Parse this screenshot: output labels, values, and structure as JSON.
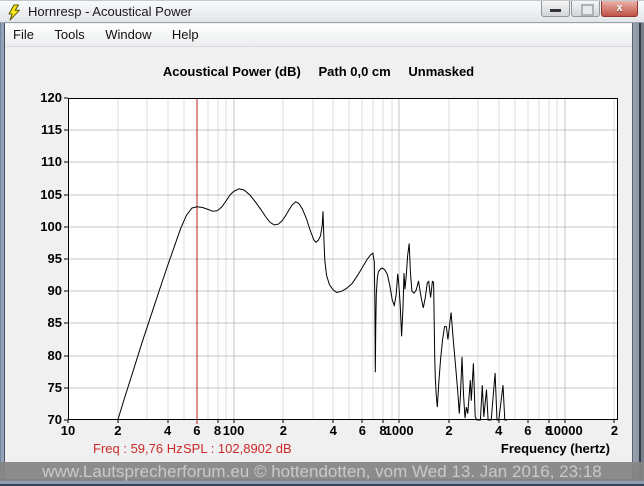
{
  "window": {
    "title": "Hornresp - Acoustical Power",
    "controls": {
      "close_glyph": "x"
    }
  },
  "menu": {
    "items": [
      {
        "label": "File"
      },
      {
        "label": "Tools"
      },
      {
        "label": "Window"
      },
      {
        "label": "Help"
      }
    ]
  },
  "chart": {
    "title_power": "Acoustical Power (dB)",
    "title_path": "Path 0,0 cm",
    "title_mask": "Unmasked",
    "xlabel": "Frequency (hertz)"
  },
  "status": {
    "freq_label": "Freq : 59,76 Hz",
    "spl_label": "SPL : 102,8902 dB"
  },
  "watermark": {
    "text": "www.Lautsprecherforum.eu © hottendotten, vom Wed 13. Jan 2016, 23:18"
  },
  "colors": {
    "cursor_red": "#b22222",
    "status_red": "#cc2a2a",
    "close_button_red": "#c05145",
    "watermark_bg": "#858585",
    "watermark_text": "#c6cacd",
    "grid_minor": "#dedede",
    "grid_major": "#c4c4c4"
  },
  "chart_data": {
    "type": "line",
    "title": "Acoustical Power (dB)  Path 0,0 cm  Unmasked",
    "xlabel": "Frequency (hertz)",
    "ylabel": "dB",
    "x_scale": "log",
    "xlim": [
      10,
      21000
    ],
    "ylim": [
      70,
      120
    ],
    "grid": true,
    "y_ticks": [
      120,
      115,
      110,
      105,
      100,
      95,
      90,
      85,
      80,
      75,
      70
    ],
    "x_ticks": [
      {
        "hz": 10,
        "label": "10"
      },
      {
        "hz": 20,
        "label": "2"
      },
      {
        "hz": 40,
        "label": "4"
      },
      {
        "hz": 60,
        "label": "6"
      },
      {
        "hz": 80,
        "label": "8"
      },
      {
        "hz": 100,
        "label": "100"
      },
      {
        "hz": 200,
        "label": "2"
      },
      {
        "hz": 400,
        "label": "4"
      },
      {
        "hz": 600,
        "label": "6"
      },
      {
        "hz": 800,
        "label": "8"
      },
      {
        "hz": 1000,
        "label": "1000"
      },
      {
        "hz": 2000,
        "label": "2"
      },
      {
        "hz": 4000,
        "label": "4"
      },
      {
        "hz": 6000,
        "label": "6"
      },
      {
        "hz": 8000,
        "label": "8"
      },
      {
        "hz": 10000,
        "label": "10000"
      },
      {
        "hz": 20000,
        "label": "2"
      }
    ],
    "cursor": {
      "freq_hz": 59.76,
      "spl_db": 102.8902,
      "color": "#b22222"
    },
    "series": [
      {
        "name": "Acoustical Power",
        "color": "#000000",
        "points": [
          [
            20,
            70
          ],
          [
            22,
            73.5
          ],
          [
            25,
            78
          ],
          [
            28,
            82
          ],
          [
            32,
            86.5
          ],
          [
            36,
            90.5
          ],
          [
            40,
            94
          ],
          [
            44,
            97
          ],
          [
            48,
            99.8
          ],
          [
            52,
            101.8
          ],
          [
            56,
            102.9
          ],
          [
            60,
            103.1
          ],
          [
            65,
            103
          ],
          [
            70,
            102.7
          ],
          [
            75,
            102.4
          ],
          [
            80,
            102.5
          ],
          [
            85,
            103.1
          ],
          [
            90,
            104
          ],
          [
            95,
            104.9
          ],
          [
            100,
            105.5
          ],
          [
            108,
            105.9
          ],
          [
            116,
            105.7
          ],
          [
            126,
            104.9
          ],
          [
            136,
            103.8
          ],
          [
            146,
            102.7
          ],
          [
            156,
            101.6
          ],
          [
            166,
            100.7
          ],
          [
            176,
            100.3
          ],
          [
            186,
            100.4
          ],
          [
            196,
            100.9
          ],
          [
            206,
            101.7
          ],
          [
            216,
            102.6
          ],
          [
            226,
            103.4
          ],
          [
            238,
            103.9
          ],
          [
            248,
            103.6
          ],
          [
            260,
            102.8
          ],
          [
            275,
            101.3
          ],
          [
            290,
            99.5
          ],
          [
            305,
            98
          ],
          [
            315,
            97.6
          ],
          [
            325,
            97.9
          ],
          [
            335,
            98.6
          ],
          [
            343,
            100.2
          ],
          [
            347,
            102.4
          ],
          [
            351,
            98.5
          ],
          [
            356,
            94.8
          ],
          [
            365,
            92.4
          ],
          [
            380,
            91
          ],
          [
            400,
            90.2
          ],
          [
            420,
            89.8
          ],
          [
            450,
            90
          ],
          [
            480,
            90.4
          ],
          [
            520,
            91.2
          ],
          [
            560,
            92.4
          ],
          [
            600,
            93.7
          ],
          [
            640,
            94.9
          ],
          [
            670,
            95.6
          ],
          [
            695,
            95.9
          ],
          [
            708,
            94.5
          ],
          [
            714,
            88
          ],
          [
            718,
            77.4
          ],
          [
            723,
            85
          ],
          [
            728,
            89.5
          ],
          [
            738,
            92
          ],
          [
            750,
            93
          ],
          [
            770,
            93.4
          ],
          [
            790,
            93.6
          ],
          [
            820,
            93.3
          ],
          [
            850,
            92.6
          ],
          [
            880,
            90.8
          ],
          [
            910,
            88.6
          ],
          [
            935,
            87.8
          ],
          [
            960,
            89.5
          ],
          [
            980,
            92.7
          ],
          [
            1000,
            90.5
          ],
          [
            1015,
            87.9
          ],
          [
            1035,
            83
          ],
          [
            1055,
            87.5
          ],
          [
            1070,
            92.8
          ],
          [
            1085,
            90.3
          ],
          [
            1105,
            92.5
          ],
          [
            1125,
            95.5
          ],
          [
            1150,
            97.4
          ],
          [
            1170,
            93
          ],
          [
            1195,
            90
          ],
          [
            1230,
            89.7
          ],
          [
            1270,
            90.2
          ],
          [
            1310,
            91.6
          ],
          [
            1340,
            90
          ],
          [
            1370,
            88.6
          ],
          [
            1400,
            87.4
          ],
          [
            1440,
            89
          ],
          [
            1480,
            91.3
          ],
          [
            1510,
            91.5
          ],
          [
            1550,
            89
          ],
          [
            1590,
            91.5
          ],
          [
            1615,
            91.4
          ],
          [
            1640,
            80
          ],
          [
            1655,
            76.5
          ],
          [
            1675,
            74
          ],
          [
            1700,
            72
          ],
          [
            1740,
            76
          ],
          [
            1780,
            79.5
          ],
          [
            1830,
            82.5
          ],
          [
            1880,
            84.5
          ],
          [
            1930,
            84.5
          ],
          [
            1970,
            82.5
          ],
          [
            2060,
            86.7
          ],
          [
            2130,
            82
          ],
          [
            2200,
            78
          ],
          [
            2260,
            74.5
          ],
          [
            2310,
            71
          ],
          [
            2350,
            74
          ],
          [
            2400,
            79.8
          ],
          [
            2450,
            74
          ],
          [
            2500,
            70.3
          ],
          [
            2550,
            72
          ],
          [
            2600,
            71
          ],
          [
            2690,
            76.2
          ],
          [
            2730,
            73
          ],
          [
            2810,
            78.8
          ],
          [
            2880,
            70.5
          ],
          [
            2950,
            70
          ],
          [
            3100,
            70
          ],
          [
            3180,
            75.4
          ],
          [
            3250,
            70.5
          ],
          [
            3370,
            74.7
          ],
          [
            3450,
            70
          ],
          [
            3600,
            70
          ],
          [
            3800,
            77.3
          ],
          [
            3900,
            70
          ],
          [
            4000,
            70
          ],
          [
            4240,
            75.4
          ],
          [
            4350,
            70
          ],
          [
            4490,
            70
          ]
        ]
      }
    ]
  }
}
